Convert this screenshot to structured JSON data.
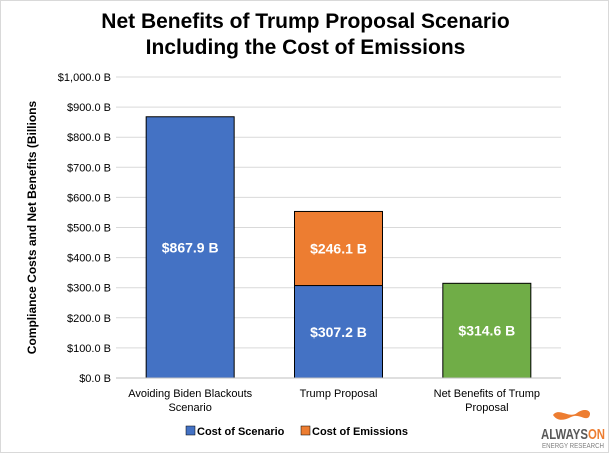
{
  "chart_data": {
    "type": "bar",
    "stacked": true,
    "title": [
      "Net Benefits of Trump Proposal Scenario",
      "Including the Cost of Emissions"
    ],
    "ylabel": "Compliance Costs and Net Benefits (Billions",
    "xlabel": "",
    "ylim": [
      0,
      1000
    ],
    "yticks": [
      "$0.0 B",
      "$100.0 B",
      "$200.0 B",
      "$300.0 B",
      "$400.0 B",
      "$500.0 B",
      "$600.0 B",
      "$700.0 B",
      "$800.0 B",
      "$900.0 B",
      "$1,000.0 B"
    ],
    "categories": [
      [
        "Avoiding Biden Blackouts",
        "Scenario"
      ],
      [
        "Trump Proposal"
      ],
      [
        "Net Benefits of Trump",
        "Proposal"
      ]
    ],
    "bars": [
      {
        "segments": [
          {
            "series": "Cost of Scenario",
            "value": 867.9,
            "label": "$867.9 B",
            "color": "#4472C4"
          }
        ]
      },
      {
        "segments": [
          {
            "series": "Cost of Scenario",
            "value": 307.2,
            "label": "$307.2 B",
            "color": "#4472C4"
          },
          {
            "series": "Cost of Emissions",
            "value": 246.1,
            "label": "$246.1 B",
            "color": "#ED7D31"
          }
        ]
      },
      {
        "segments": [
          {
            "series": "Net Benefits",
            "value": 314.6,
            "label": "$314.6 B",
            "color": "#70AD47"
          }
        ]
      }
    ],
    "legend": {
      "placement": "bottom",
      "entries": [
        {
          "name": "Cost of Scenario",
          "color": "#4472C4"
        },
        {
          "name": "Cost of Emissions",
          "color": "#ED7D31"
        }
      ]
    },
    "grid": true
  },
  "logo": {
    "line1": "ALWAYSON",
    "line2": "ENERGY RESEARCH"
  }
}
